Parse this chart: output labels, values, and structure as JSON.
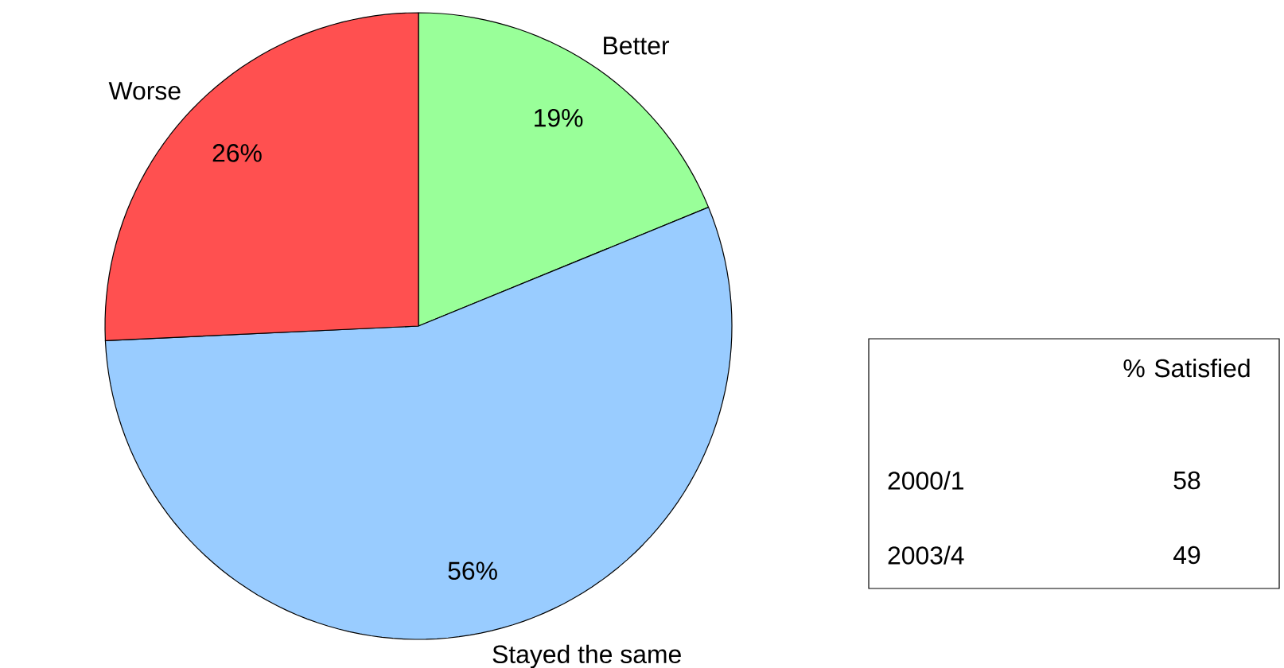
{
  "chart_data": [
    {
      "type": "pie",
      "categories": [
        "Better",
        "Stayed the same",
        "Worse"
      ],
      "values": [
        19,
        56,
        26
      ],
      "colors": [
        "#99ff99",
        "#99ccff",
        "#ff5050"
      ],
      "value_labels": [
        "19%",
        "56%",
        "26%"
      ]
    },
    {
      "type": "other",
      "title": "% Satisfied",
      "categories": [
        "2000/1",
        "2003/4"
      ],
      "values": [
        58,
        49
      ],
      "data_labels": true
    }
  ]
}
